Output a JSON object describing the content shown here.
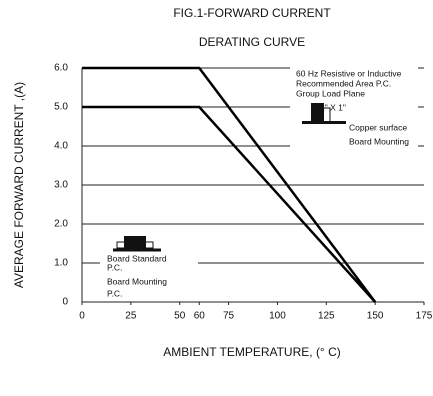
{
  "chart_data": {
    "type": "line",
    "title": "FIG.1-FORWARD CURRENT",
    "subtitle": "DERATING CURVE",
    "x_label": "AMBIENT TEMPERATURE, (° C)",
    "y_label": "AVERAGE FORWARD CURRENT ,(A)",
    "x": [
      0,
      60,
      150
    ],
    "series": [
      {
        "color": "#000000",
        "values": [
          6,
          6,
          0
        ]
      },
      {
        "color": "#000000",
        "values": [
          5,
          5,
          0
        ]
      }
    ],
    "xlim": [
      0,
      175
    ],
    "xticks": [
      0,
      25,
      50,
      60,
      75,
      100,
      125,
      150,
      175
    ],
    "ylim": [
      0,
      6
    ],
    "yticks": [
      0,
      {
        "value": 1,
        "label": "1.0"
      },
      {
        "value": 2,
        "label": "2.0"
      },
      {
        "value": 3,
        "label": "3.0"
      },
      {
        "value": 4,
        "label": "4.0"
      },
      {
        "value": 5,
        "label": "5.0"
      },
      {
        "value": 6,
        "label": "6.0"
      }
    ],
    "grid": true,
    "annotations": [
      "60 Hz Resistive or  Inductive",
      "Recommended Area P.C.",
      "Group Load Plane",
      "1\" X 1\"",
      "Copper surface",
      "Board Mounting",
      "Board Standard",
      "P.C.",
      "Board Mounting",
      "P.C."
    ]
  }
}
